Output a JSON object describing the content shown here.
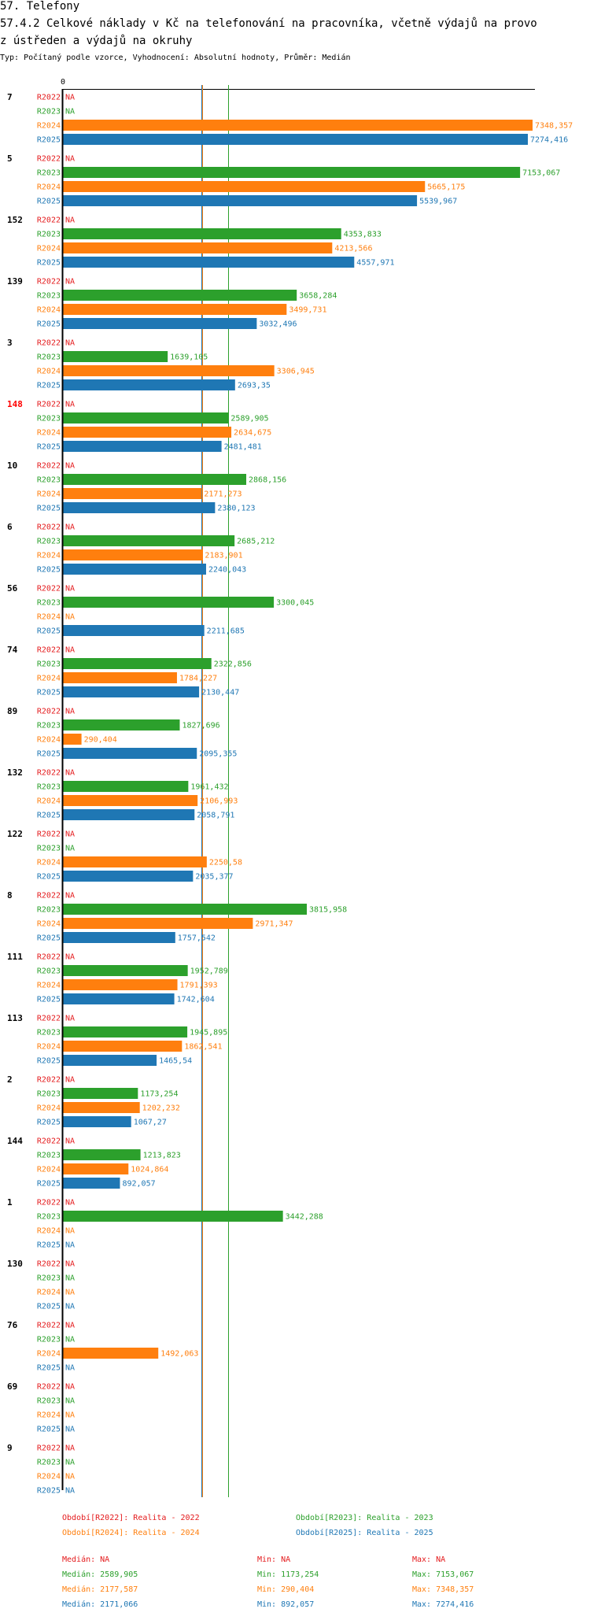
{
  "header": {
    "section": "57. Telefony",
    "title_line1": "57.4.2 Celkové náklady v Kč na telefonování na pracovníka, včetně výdajů na provo",
    "title_line2": "z ústředen a výdajů na okruhy",
    "subtitle": "Typ: Počítaný podle vzorce, Vyhodnocení: Absolutní hodnoty, Průměr: Medián"
  },
  "chart_data": {
    "type": "bar",
    "orientation": "horizontal",
    "axis_zero_label": "0",
    "xlim": [
      0,
      7348.357
    ],
    "periods": [
      "R2022",
      "R2023",
      "R2024",
      "R2025"
    ],
    "colors": {
      "R2022": "#e41a1c",
      "R2023": "#2ca02c",
      "R2024": "#ff7f0e",
      "R2025": "#1f77b4"
    },
    "na_label": "NA",
    "median_lines": {
      "R2023": 2589.905,
      "R2024": 2177.587,
      "R2025": 2171.066
    },
    "groups": [
      {
        "label": "7",
        "highlight": false,
        "values": [
          null,
          null,
          7348.357,
          7274.416
        ],
        "labels": [
          "NA",
          "NA",
          "7348,357",
          "7274,416"
        ]
      },
      {
        "label": "5",
        "highlight": false,
        "values": [
          null,
          7153.067,
          5665.175,
          5539.967
        ],
        "labels": [
          "NA",
          "7153,067",
          "5665,175",
          "5539,967"
        ]
      },
      {
        "label": "152",
        "highlight": false,
        "values": [
          null,
          4353.833,
          4213.566,
          4557.971
        ],
        "labels": [
          "NA",
          "4353,833",
          "4213,566",
          "4557,971"
        ]
      },
      {
        "label": "139",
        "highlight": false,
        "values": [
          null,
          3658.284,
          3499.731,
          3032.496
        ],
        "labels": [
          "NA",
          "3658,284",
          "3499,731",
          "3032,496"
        ]
      },
      {
        "label": "3",
        "highlight": false,
        "values": [
          null,
          1639.105,
          3306.945,
          2693.35
        ],
        "labels": [
          "NA",
          "1639,105",
          "3306,945",
          "2693,35"
        ]
      },
      {
        "label": "148",
        "highlight": true,
        "values": [
          null,
          2589.905,
          2634.675,
          2481.481
        ],
        "labels": [
          "NA",
          "2589,905",
          "2634,675",
          "2481,481"
        ]
      },
      {
        "label": "10",
        "highlight": false,
        "values": [
          null,
          2868.156,
          2171.273,
          2380.123
        ],
        "labels": [
          "NA",
          "2868,156",
          "2171,273",
          "2380,123"
        ]
      },
      {
        "label": "6",
        "highlight": false,
        "values": [
          null,
          2685.212,
          2183.901,
          2240.043
        ],
        "labels": [
          "NA",
          "2685,212",
          "2183,901",
          "2240,043"
        ]
      },
      {
        "label": "56",
        "highlight": false,
        "values": [
          null,
          3300.045,
          null,
          2211.685
        ],
        "labels": [
          "NA",
          "3300,045",
          "NA",
          "2211,685"
        ]
      },
      {
        "label": "74",
        "highlight": false,
        "values": [
          null,
          2322.856,
          1784.227,
          2130.447
        ],
        "labels": [
          "NA",
          "2322,856",
          "1784,227",
          "2130,447"
        ]
      },
      {
        "label": "89",
        "highlight": false,
        "values": [
          null,
          1827.696,
          290.404,
          2095.355
        ],
        "labels": [
          "NA",
          "1827,696",
          "290,404",
          "2095,355"
        ]
      },
      {
        "label": "132",
        "highlight": false,
        "values": [
          null,
          1961.432,
          2106.993,
          2058.791
        ],
        "labels": [
          "NA",
          "1961,432",
          "2106,993",
          "2058,791"
        ]
      },
      {
        "label": "122",
        "highlight": false,
        "values": [
          null,
          null,
          2250.58,
          2035.377
        ],
        "labels": [
          "NA",
          "NA",
          "2250,58",
          "2035,377"
        ]
      },
      {
        "label": "8",
        "highlight": false,
        "values": [
          null,
          3815.958,
          2971.347,
          1757.542
        ],
        "labels": [
          "NA",
          "3815,958",
          "2971,347",
          "1757,542"
        ]
      },
      {
        "label": "111",
        "highlight": false,
        "values": [
          null,
          1952.789,
          1791.393,
          1742.604
        ],
        "labels": [
          "NA",
          "1952,789",
          "1791,393",
          "1742,604"
        ]
      },
      {
        "label": "113",
        "highlight": false,
        "values": [
          null,
          1945.895,
          1862.541,
          1465.54
        ],
        "labels": [
          "NA",
          "1945,895",
          "1862,541",
          "1465,54"
        ]
      },
      {
        "label": "2",
        "highlight": false,
        "values": [
          null,
          1173.254,
          1202.232,
          1067.27
        ],
        "labels": [
          "NA",
          "1173,254",
          "1202,232",
          "1067,27"
        ]
      },
      {
        "label": "144",
        "highlight": false,
        "values": [
          null,
          1213.823,
          1024.864,
          892.057
        ],
        "labels": [
          "NA",
          "1213,823",
          "1024,864",
          "892,057"
        ]
      },
      {
        "label": "1",
        "highlight": false,
        "values": [
          null,
          3442.288,
          null,
          null
        ],
        "labels": [
          "NA",
          "3442,288",
          "NA",
          "NA"
        ]
      },
      {
        "label": "130",
        "highlight": false,
        "values": [
          null,
          null,
          null,
          null
        ],
        "labels": [
          "NA",
          "NA",
          "NA",
          "NA"
        ]
      },
      {
        "label": "76",
        "highlight": false,
        "values": [
          null,
          null,
          1492.063,
          null
        ],
        "labels": [
          "NA",
          "NA",
          "1492,063",
          "NA"
        ]
      },
      {
        "label": "69",
        "highlight": false,
        "values": [
          null,
          null,
          null,
          null
        ],
        "labels": [
          "NA",
          "NA",
          "NA",
          "NA"
        ]
      },
      {
        "label": "9",
        "highlight": false,
        "values": [
          null,
          null,
          null,
          null
        ],
        "labels": [
          "NA",
          "NA",
          "NA",
          "NA"
        ]
      }
    ]
  },
  "legend": {
    "r2022": "Období[R2022]: Realita - 2022",
    "r2023": "Období[R2023]: Realita - 2023",
    "r2024": "Období[R2024]: Realita - 2024",
    "r2025": "Období[R2025]: Realita - 2025"
  },
  "stats": {
    "r2022": {
      "median": "Medián: NA",
      "min": "Min: NA",
      "max": "Max: NA"
    },
    "r2023": {
      "median": "Medián: 2589,905",
      "min": "Min: 1173,254",
      "max": "Max: 7153,067"
    },
    "r2024": {
      "median": "Medián: 2177,587",
      "min": "Min: 290,404",
      "max": "Max: 7348,357"
    },
    "r2025": {
      "median": "Medián: 2171,066",
      "min": "Min: 892,057",
      "max": "Max: 7274,416"
    }
  }
}
